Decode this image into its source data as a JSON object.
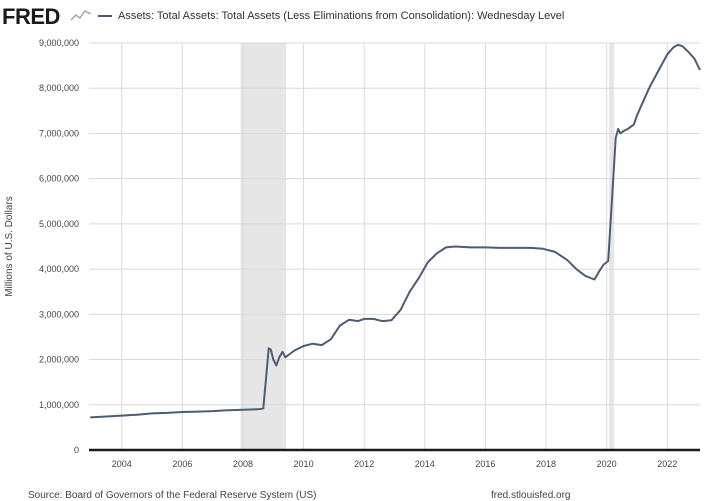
{
  "header": {
    "logo_text": "FRED",
    "logo_icon": "sparkline-icon",
    "series_title": "Assets: Total Assets: Total Assets (Less Eliminations from Consolidation): Wednesday Level"
  },
  "footer": {
    "source": "Source: Board of Governors of the Federal Reserve System (US)",
    "site": "fred.stlouisfed.org"
  },
  "colors": {
    "line": "#4b5d73",
    "recession": "#e6e6e6",
    "grid": "#dadada",
    "axis": "#1a1a1a"
  },
  "chart_data": {
    "type": "line",
    "title": "",
    "xlabel": "",
    "ylabel": "Millions of U.S. Dollars",
    "xlim": [
      2002.92,
      2023.08
    ],
    "ylim": [
      0,
      9000000
    ],
    "x_ticks": [
      2004,
      2006,
      2008,
      2010,
      2012,
      2014,
      2016,
      2018,
      2020,
      2022
    ],
    "x_tick_labels": [
      "2004",
      "2006",
      "2008",
      "2010",
      "2012",
      "2014",
      "2016",
      "2018",
      "2020",
      "2022"
    ],
    "y_ticks": [
      0,
      1000000,
      2000000,
      3000000,
      4000000,
      5000000,
      6000000,
      7000000,
      8000000,
      9000000
    ],
    "y_tick_labels": [
      "0",
      "1,000,000",
      "2,000,000",
      "3,000,000",
      "4,000,000",
      "5,000,000",
      "6,000,000",
      "7,000,000",
      "8,000,000",
      "9,000,000"
    ],
    "grid": true,
    "recessions": [
      {
        "start": 2007.92,
        "end": 2009.42
      },
      {
        "start": 2020.08,
        "end": 2020.25
      }
    ],
    "series": [
      {
        "name": "Assets: Total Assets: Total Assets (Less Eliminations from Consolidation): Wednesday Level",
        "x": [
          2002.96,
          2003.5,
          2004.0,
          2004.5,
          2005.0,
          2005.5,
          2006.0,
          2006.5,
          2007.0,
          2007.5,
          2008.0,
          2008.5,
          2008.67,
          2008.75,
          2008.85,
          2008.92,
          2009.0,
          2009.1,
          2009.2,
          2009.3,
          2009.4,
          2009.5,
          2009.7,
          2010.0,
          2010.3,
          2010.6,
          2010.9,
          2011.2,
          2011.5,
          2011.8,
          2012.0,
          2012.3,
          2012.6,
          2012.9,
          2013.2,
          2013.5,
          2013.8,
          2014.1,
          2014.4,
          2014.7,
          2015.0,
          2015.5,
          2016.0,
          2016.5,
          2017.0,
          2017.5,
          2017.9,
          2018.3,
          2018.7,
          2019.0,
          2019.3,
          2019.6,
          2019.75,
          2019.9,
          2020.05,
          2020.2,
          2020.3,
          2020.38,
          2020.45,
          2020.55,
          2020.7,
          2020.9,
          2021.0,
          2021.2,
          2021.4,
          2021.6,
          2021.8,
          2022.0,
          2022.2,
          2022.35,
          2022.5,
          2022.7,
          2022.9,
          2023.08
        ],
        "values": [
          720000,
          740000,
          760000,
          780000,
          810000,
          820000,
          840000,
          850000,
          860000,
          880000,
          890000,
          900000,
          920000,
          1500000,
          2250000,
          2220000,
          2000000,
          1870000,
          2050000,
          2170000,
          2050000,
          2100000,
          2200000,
          2300000,
          2350000,
          2320000,
          2450000,
          2750000,
          2880000,
          2850000,
          2900000,
          2900000,
          2850000,
          2870000,
          3100000,
          3500000,
          3800000,
          4150000,
          4350000,
          4480000,
          4500000,
          4480000,
          4480000,
          4470000,
          4470000,
          4470000,
          4450000,
          4380000,
          4200000,
          4000000,
          3850000,
          3770000,
          3950000,
          4100000,
          4180000,
          5800000,
          6900000,
          7100000,
          7000000,
          7050000,
          7100000,
          7200000,
          7400000,
          7700000,
          8000000,
          8250000,
          8500000,
          8750000,
          8900000,
          8960000,
          8930000,
          8800000,
          8650000,
          8400000
        ]
      }
    ]
  }
}
